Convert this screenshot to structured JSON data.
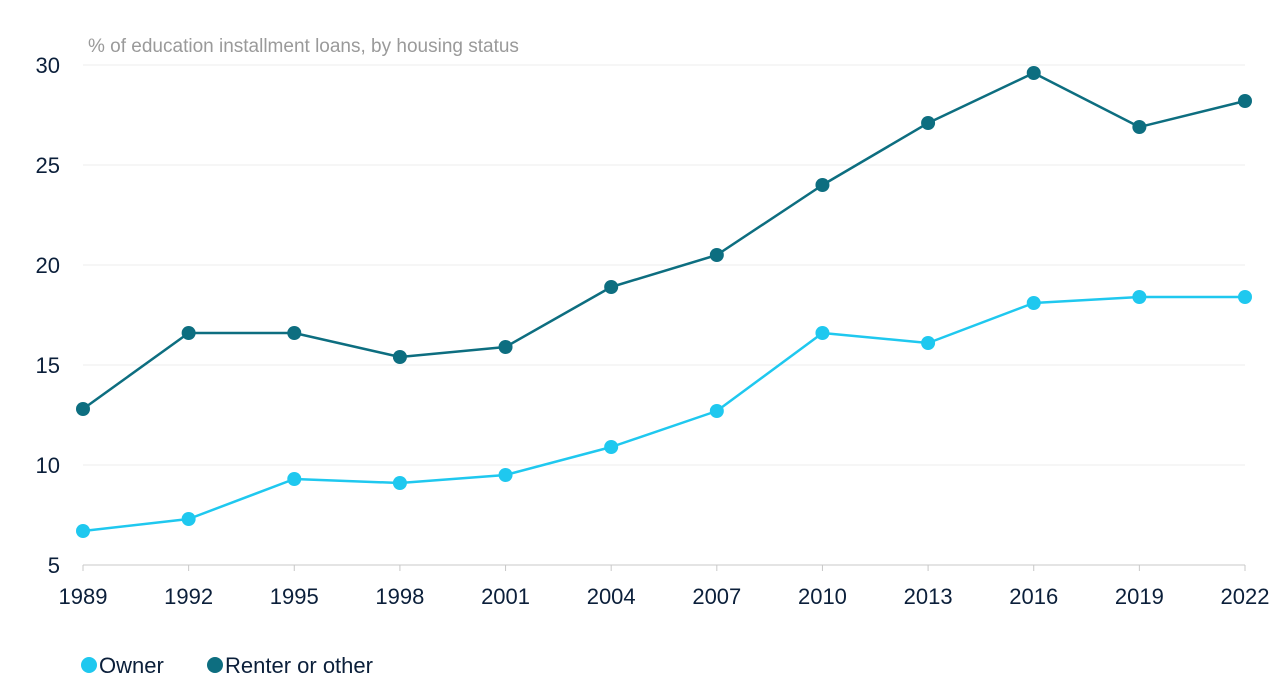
{
  "chart_data": {
    "type": "line",
    "subtitle": "% of education installment loans, by housing status",
    "x": [
      "1989",
      "1992",
      "1995",
      "1998",
      "2001",
      "2004",
      "2007",
      "2010",
      "2013",
      "2016",
      "2019",
      "2022"
    ],
    "ylim": [
      5,
      30
    ],
    "yticks": [
      5,
      10,
      15,
      20,
      25,
      30
    ],
    "grid": true,
    "legend_position": "bottom-left",
    "series": [
      {
        "name": "Owner",
        "color": "#1fc8ef",
        "values": [
          6.7,
          7.3,
          9.3,
          9.1,
          9.5,
          10.9,
          12.7,
          16.6,
          16.1,
          18.1,
          18.4,
          18.4
        ]
      },
      {
        "name": "Renter or other",
        "color": "#0d6e80",
        "values": [
          12.8,
          16.6,
          16.6,
          15.4,
          15.9,
          18.9,
          20.5,
          24.0,
          27.1,
          29.6,
          26.9,
          28.2
        ]
      }
    ]
  }
}
